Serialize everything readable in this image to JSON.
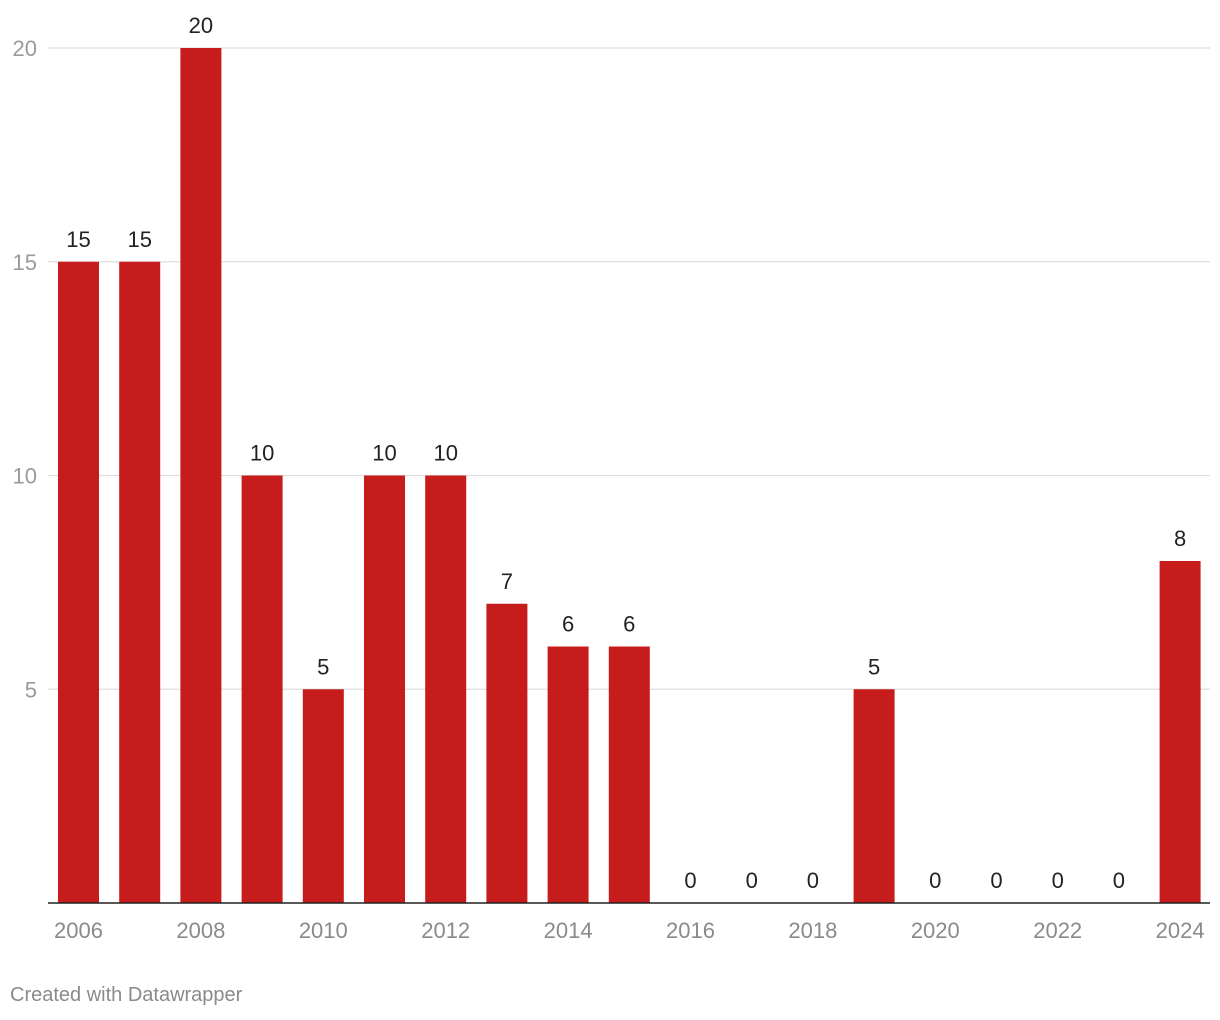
{
  "chart_data": {
    "type": "bar",
    "title": "",
    "xlabel": "",
    "ylabel": "",
    "categories": [
      "2006",
      "2007",
      "2008",
      "2009",
      "2010",
      "2011",
      "2012",
      "2013",
      "2014",
      "2015",
      "2016",
      "2017",
      "2018",
      "2019",
      "2020",
      "2021",
      "2022",
      "2023",
      "2024"
    ],
    "values": [
      15,
      15,
      20,
      10,
      5,
      10,
      10,
      7,
      6,
      6,
      0,
      0,
      0,
      5,
      0,
      0,
      0,
      0,
      8
    ],
    "ylim": [
      0,
      20
    ],
    "yticks": [
      5,
      10,
      15,
      20
    ],
    "xtick_labels": [
      "2006",
      "2008",
      "2010",
      "2012",
      "2014",
      "2016",
      "2018",
      "2020",
      "2022",
      "2024"
    ],
    "grid": true,
    "legend": "none",
    "bar_color": "#c71c1c"
  },
  "footer": {
    "credit": "Created with Datawrapper"
  }
}
